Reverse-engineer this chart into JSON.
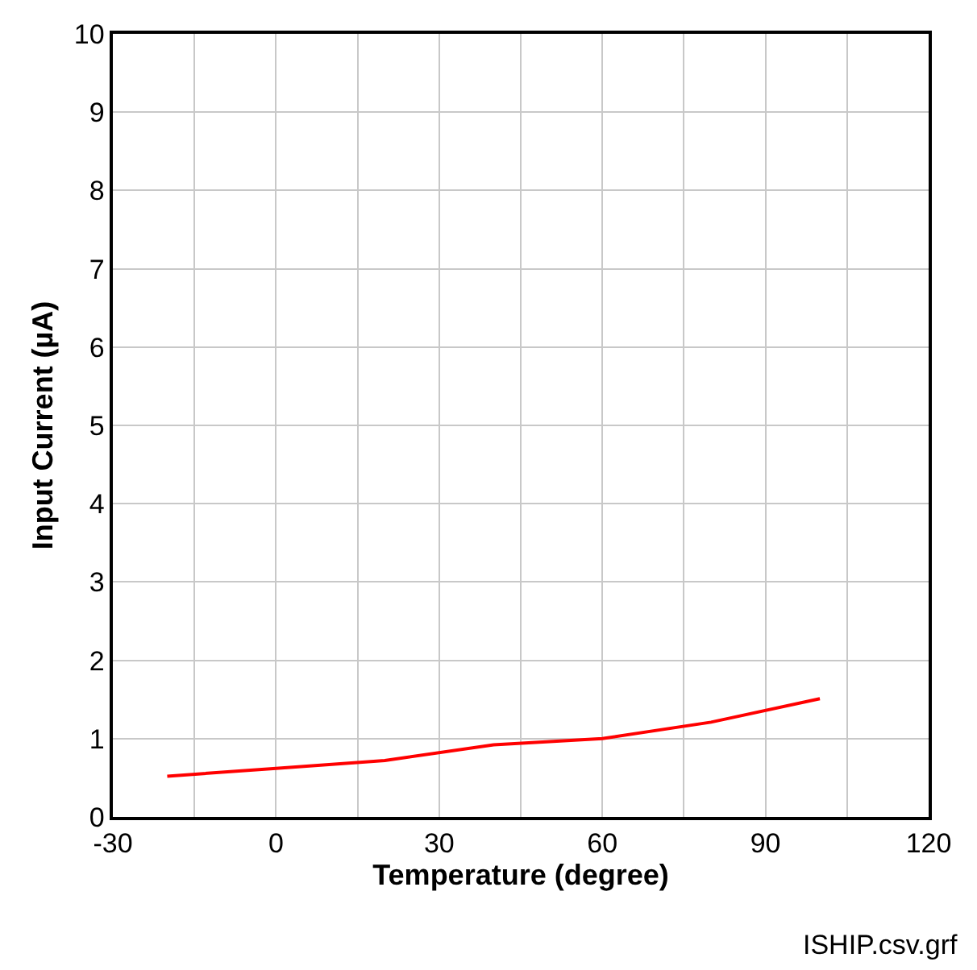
{
  "chart_data": {
    "type": "line",
    "xlabel": "Temperature (degree)",
    "ylabel": "Input Current (µA)",
    "x": [
      -20,
      0,
      20,
      40,
      60,
      80,
      100
    ],
    "series": [
      {
        "color": "#ff0000",
        "values": [
          0.52,
          0.62,
          0.72,
          0.92,
          1.0,
          1.21,
          1.51
        ]
      }
    ],
    "xlim": [
      -30,
      120
    ],
    "ylim": [
      0,
      10
    ],
    "xticks": [
      -30,
      {
        "value": -15,
        "label": null
      },
      0,
      {
        "value": 15,
        "label": null
      },
      30,
      {
        "value": 45,
        "label": null
      },
      60,
      {
        "value": 75,
        "label": null
      },
      90,
      {
        "value": 105,
        "label": null
      },
      120
    ],
    "yticks": [
      0,
      1,
      2,
      3,
      4,
      5,
      6,
      7,
      8,
      9,
      10
    ],
    "grid": true,
    "marker": "none",
    "line_style": "solid",
    "annotations": [
      "ISHIP.csv.grf"
    ]
  }
}
